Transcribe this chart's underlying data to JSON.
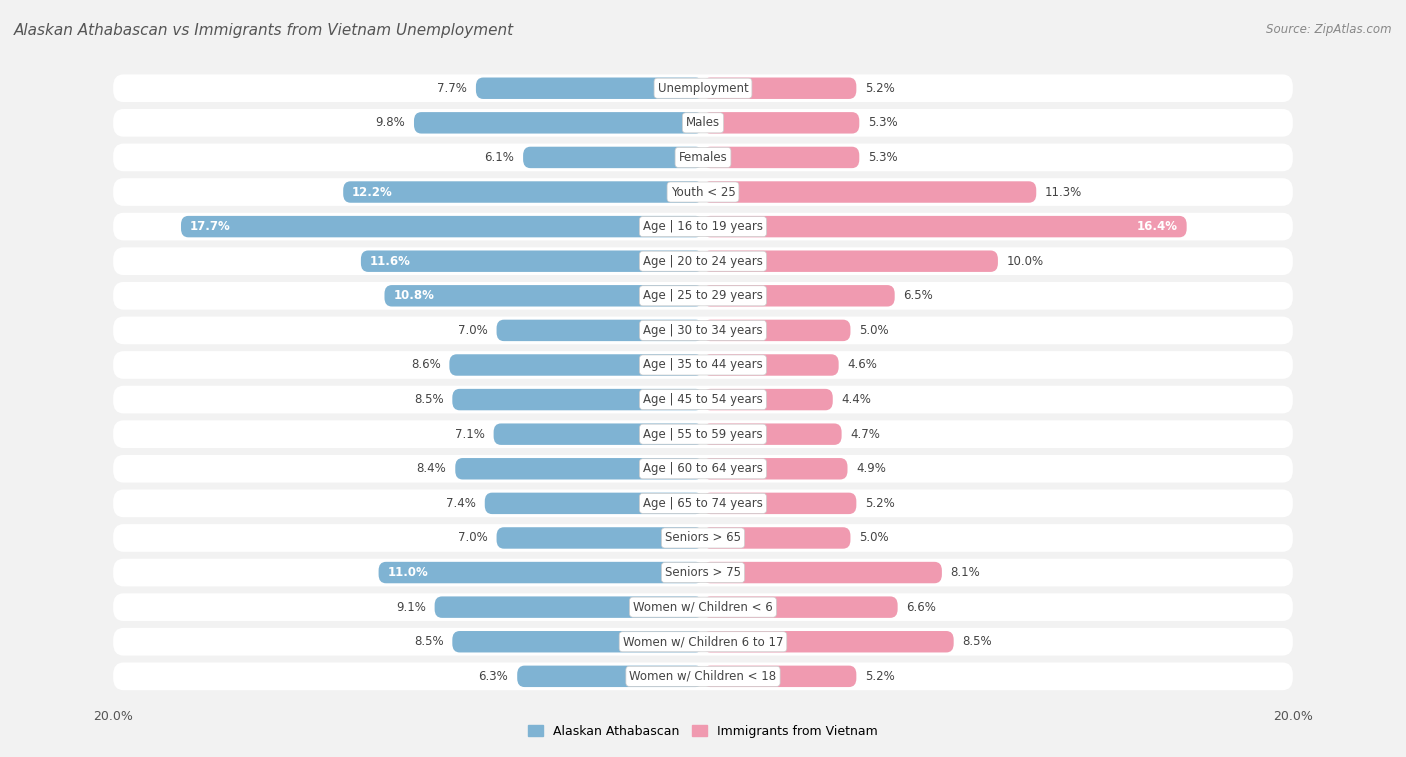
{
  "title": "Alaskan Athabascan vs Immigrants from Vietnam Unemployment",
  "source": "Source: ZipAtlas.com",
  "categories": [
    "Unemployment",
    "Males",
    "Females",
    "Youth < 25",
    "Age | 16 to 19 years",
    "Age | 20 to 24 years",
    "Age | 25 to 29 years",
    "Age | 30 to 34 years",
    "Age | 35 to 44 years",
    "Age | 45 to 54 years",
    "Age | 55 to 59 years",
    "Age | 60 to 64 years",
    "Age | 65 to 74 years",
    "Seniors > 65",
    "Seniors > 75",
    "Women w/ Children < 6",
    "Women w/ Children 6 to 17",
    "Women w/ Children < 18"
  ],
  "left_values": [
    7.7,
    9.8,
    6.1,
    12.2,
    17.7,
    11.6,
    10.8,
    7.0,
    8.6,
    8.5,
    7.1,
    8.4,
    7.4,
    7.0,
    11.0,
    9.1,
    8.5,
    6.3
  ],
  "right_values": [
    5.2,
    5.3,
    5.3,
    11.3,
    16.4,
    10.0,
    6.5,
    5.0,
    4.6,
    4.4,
    4.7,
    4.9,
    5.2,
    5.0,
    8.1,
    6.6,
    8.5,
    5.2
  ],
  "left_color": "#7fb3d3",
  "right_color": "#f09ab0",
  "left_label": "Alaskan Athabascan",
  "right_label": "Immigrants from Vietnam",
  "axis_max": 20.0,
  "bg_color": "#f2f2f2",
  "row_bg_color": "#e8e8e8",
  "row_bg_color2": "#f8f8f8",
  "title_fontsize": 11,
  "source_fontsize": 8.5,
  "label_fontsize": 8.5,
  "value_fontsize": 8.5
}
